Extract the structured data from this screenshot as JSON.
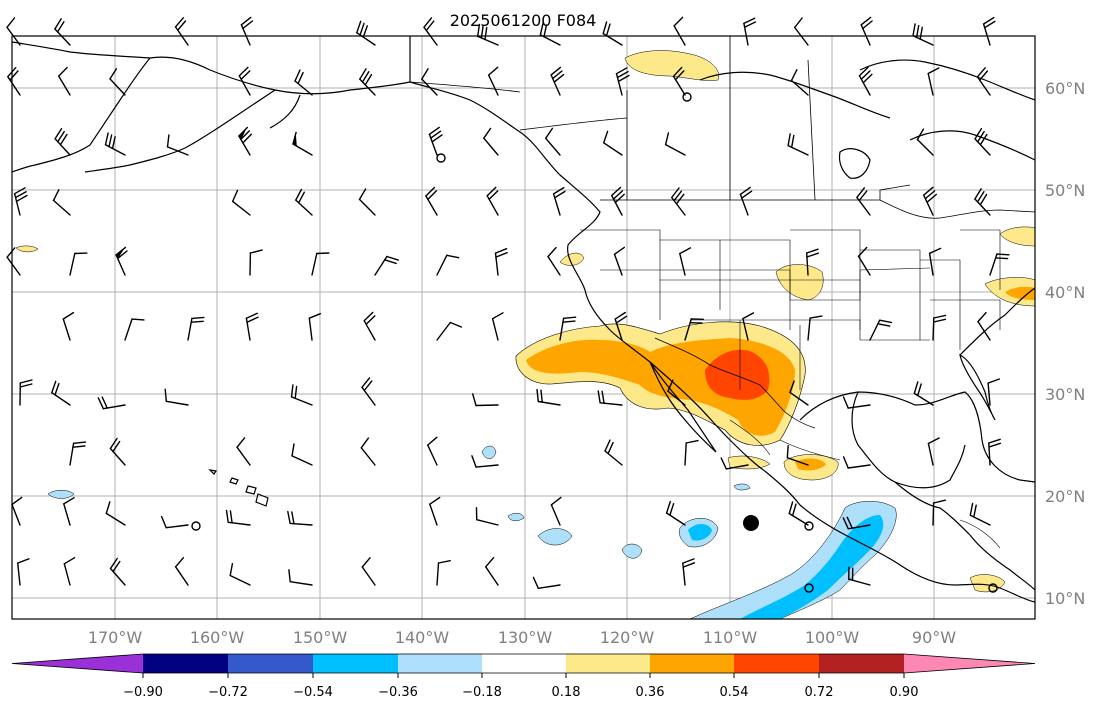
{
  "title": "2025061200 F084",
  "longitude_labels": [
    "170°W",
    "160°W",
    "150°W",
    "140°W",
    "130°W",
    "120°W",
    "110°W",
    "100°W",
    "90°W"
  ],
  "latitude_labels": [
    "60°N",
    "50°N",
    "40°N",
    "30°N",
    "20°N",
    "10°N"
  ],
  "colorbar": {
    "tick_labels": [
      "−0.90",
      "−0.72",
      "−0.54",
      "−0.36",
      "−0.18",
      "0.18",
      "0.36",
      "0.54",
      "0.72",
      "0.90"
    ],
    "colors": [
      "#9b30d8",
      "#000080",
      "#3459cc",
      "#00bfff",
      "#aee0fb",
      "#ffffff",
      "#fde98a",
      "#ffa500",
      "#ff4500",
      "#b22222",
      "#ff87b4"
    ]
  },
  "field_colors": {
    "neg_light": "#aee0fb",
    "neg_mid": "#00bfff",
    "pos_light": "#fde98a",
    "pos_mid": "#ffa500",
    "pos_high": "#ff4500"
  },
  "icons": {
    "wind_barb": "wind-barb-icon",
    "calm_wind": "calm-wind-circle-icon",
    "station": "station-dot-icon"
  }
}
